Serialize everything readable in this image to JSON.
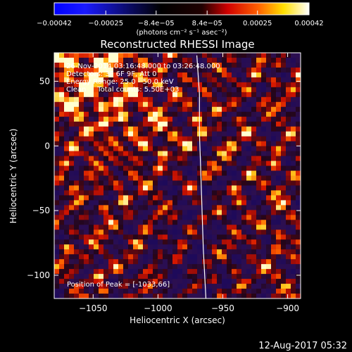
{
  "chart_data": {
    "type": "heatmap",
    "title": "Reconstructed RHESSI Image",
    "xlabel": "Heliocentric X (arcsec)",
    "ylabel": "Heliocentric Y (arcsec)",
    "xlim": [
      -1080,
      -890
    ],
    "ylim": [
      -118,
      72
    ],
    "x_ticks": [
      {
        "value": -1050,
        "label": "−1050"
      },
      {
        "value": -1000,
        "label": "−1000"
      },
      {
        "value": -950,
        "label": "−950"
      },
      {
        "value": -900,
        "label": "−900"
      }
    ],
    "y_ticks": [
      {
        "value": -100,
        "label": "−100"
      },
      {
        "value": -50,
        "label": "−50"
      },
      {
        "value": 0,
        "label": "0"
      },
      {
        "value": 50,
        "label": "50"
      }
    ],
    "colorbar": {
      "range": [
        -0.00042,
        0.00042
      ],
      "ticks": [
        {
          "value": -0.00042,
          "label": "−0.00042"
        },
        {
          "value": -0.00025,
          "label": "−0.00025"
        },
        {
          "value": -8.4e-05,
          "label": "−8.4e−05"
        },
        {
          "value": 8.4e-05,
          "label": "8.4e−05"
        },
        {
          "value": 0.00025,
          "label": "0.00025"
        },
        {
          "value": 0.00042,
          "label": "0.00042"
        }
      ],
      "unit_label": "(photons cm⁻² s⁻¹ asec⁻²)"
    },
    "info_lines": [
      "26-Nov-2014 03:16:48.000 to 03:26:48.000",
      "Detectors: 3F 6F 9F, Att 0",
      "Energy Range: 25.0 - 50.0 keV",
      "Clean     Total counts: 5.50E+03"
    ],
    "peak_label": "Position of Peak = [-1033,66]",
    "limb_line": [
      [
        -970,
        70
      ],
      [
        -968,
        40
      ],
      [
        -968,
        10
      ],
      [
        -967,
        -20
      ],
      [
        -966,
        -50
      ],
      [
        -965,
        -80
      ],
      [
        -963,
        -118
      ]
    ],
    "grid": false
  },
  "timestamp": "12-Aug-2017 05:32",
  "colors": {
    "background": "#000000",
    "frame": "#ffffff",
    "colormap": [
      "#0000ff",
      "#000000",
      "#ff0000",
      "#ffff00",
      "#ffffff"
    ]
  }
}
